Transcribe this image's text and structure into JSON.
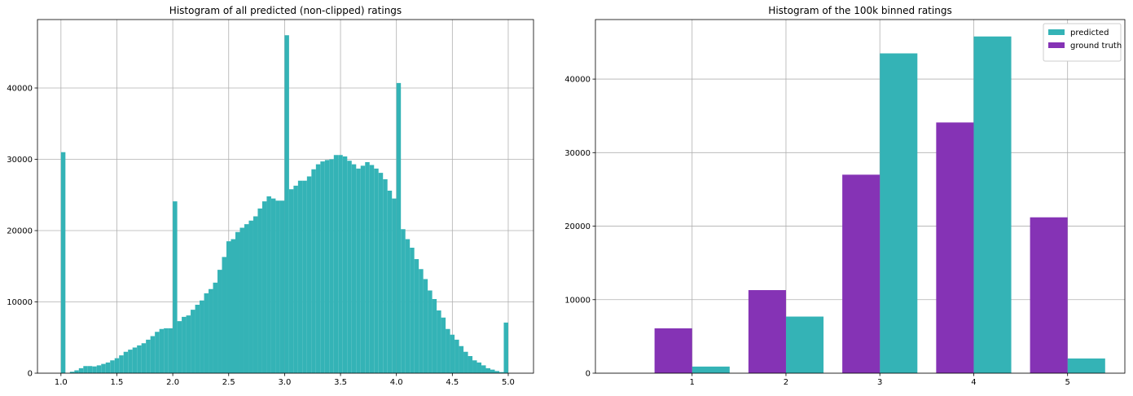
{
  "chart_data": [
    {
      "type": "histogram",
      "title": "Histogram of all predicted (non-clipped) ratings",
      "color": "#34b3b6",
      "grid": true,
      "bins": [
        1,
        1.04,
        1.08,
        1.12,
        1.16,
        1.2,
        1.24,
        1.28,
        1.32,
        1.36,
        1.4,
        1.44,
        1.48,
        1.52,
        1.56,
        1.6,
        1.64,
        1.68,
        1.72,
        1.76,
        1.8,
        1.84,
        1.88,
        1.92,
        1.96,
        2,
        2.04,
        2.08,
        2.12,
        2.16,
        2.2,
        2.24,
        2.28,
        2.32,
        2.36,
        2.4,
        2.44,
        2.48,
        2.52,
        2.56,
        2.6,
        2.64,
        2.68,
        2.72,
        2.76,
        2.8,
        2.84,
        2.88,
        2.92,
        2.96,
        3,
        3.04,
        3.08,
        3.12,
        3.16,
        3.2,
        3.24,
        3.28,
        3.32,
        3.36,
        3.4,
        3.44,
        3.48,
        3.52,
        3.56,
        3.6,
        3.64,
        3.68,
        3.72,
        3.76,
        3.8,
        3.84,
        3.88,
        3.92,
        3.96,
        4,
        4.04,
        4.08,
        4.12,
        4.16,
        4.2,
        4.24,
        4.28,
        4.32,
        4.36,
        4.4,
        4.44,
        4.48,
        4.52,
        4.56,
        4.6,
        4.64,
        4.68,
        4.72,
        4.76,
        4.8,
        4.84,
        4.88,
        4.92,
        4.96,
        5
      ],
      "values": [
        31000,
        0,
        200,
        400,
        700,
        1000,
        1000,
        950,
        1100,
        1300,
        1500,
        1800,
        2100,
        2500,
        3000,
        3300,
        3600,
        3900,
        4200,
        4700,
        5200,
        5800,
        6200,
        6300,
        6300,
        24100,
        7300,
        7900,
        8100,
        8900,
        9600,
        10200,
        11200,
        11800,
        12700,
        14500,
        16300,
        18500,
        18800,
        19800,
        20400,
        20900,
        21400,
        22000,
        23100,
        24100,
        24800,
        24500,
        24200,
        24200,
        47400,
        25800,
        26300,
        27000,
        27000,
        27600,
        28600,
        29300,
        29700,
        29900,
        30000,
        30600,
        30600,
        30400,
        29800,
        29300,
        28700,
        29100,
        29600,
        29200,
        28700,
        28100,
        27200,
        25600,
        24500,
        40700,
        20200,
        18800,
        17600,
        16000,
        14600,
        13200,
        11600,
        10400,
        8800,
        7800,
        6200,
        5400,
        4700,
        3800,
        3000,
        2400,
        1800,
        1500,
        1100,
        700,
        500,
        300,
        150,
        7100
      ],
      "xlim": [
        0.79,
        5.226
      ],
      "xticks": [
        {
          "value": 1,
          "label": "1.0"
        },
        1.5,
        {
          "value": 2,
          "label": "2.0"
        },
        2.5,
        {
          "value": 3,
          "label": "3.0"
        },
        3.5,
        {
          "value": 4,
          "label": "4.0"
        },
        4.5,
        {
          "value": 5,
          "label": "5.0"
        }
      ],
      "ylim": [
        0,
        49600
      ],
      "yticks": [
        0,
        10000,
        20000,
        30000,
        40000
      ]
    },
    {
      "type": "bar",
      "title": "Histogram of the 100k binned ratings",
      "grid": true,
      "legend": "upper right",
      "x": [
        1,
        2,
        3,
        4,
        5
      ],
      "series": [
        {
          "name": "predicted",
          "color": "#34b3b6",
          "values": [
            900,
            7700,
            43500,
            45800,
            2000
          ]
        },
        {
          "name": "ground truth",
          "color": "#8533b5",
          "values": [
            6100,
            11300,
            27000,
            34100,
            21200
          ]
        }
      ],
      "xlim": [
        -0.03,
        5.61
      ],
      "xticks": [
        1,
        2,
        3,
        4,
        5
      ],
      "ylim": [
        0,
        48100
      ],
      "yticks": [
        0,
        10000,
        20000,
        30000,
        40000
      ]
    }
  ]
}
